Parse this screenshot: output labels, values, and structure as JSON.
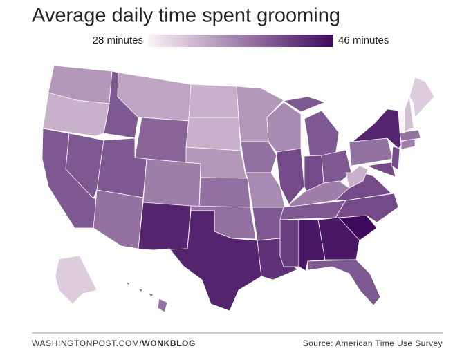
{
  "title": "Average daily time spent grooming",
  "chart_data": {
    "type": "choropleth",
    "values": [
      35,
      33,
      40,
      40,
      40,
      34,
      39,
      40,
      38,
      37,
      44,
      33,
      33,
      35,
      38,
      38,
      44,
      35,
      38,
      36,
      40,
      43,
      36,
      41,
      40,
      41,
      40,
      37,
      40,
      42,
      45,
      45,
      40,
      46,
      41,
      41,
      33,
      38,
      44,
      41,
      41,
      37,
      38,
      28,
      32,
      31,
      31,
      38
    ],
    "low_color": "#fcf3f5",
    "high_color": "#3f0a5e",
    "ticks": [
      {
        "value": 28,
        "label": "28 minutes"
      },
      {
        "value": 46,
        "label": "46 minutes"
      }
    ]
  },
  "footer": {
    "site": "WASHINGTONPOST.COM/",
    "blog": "WONKBLOG",
    "source": "Source: American Time Use Survey"
  }
}
